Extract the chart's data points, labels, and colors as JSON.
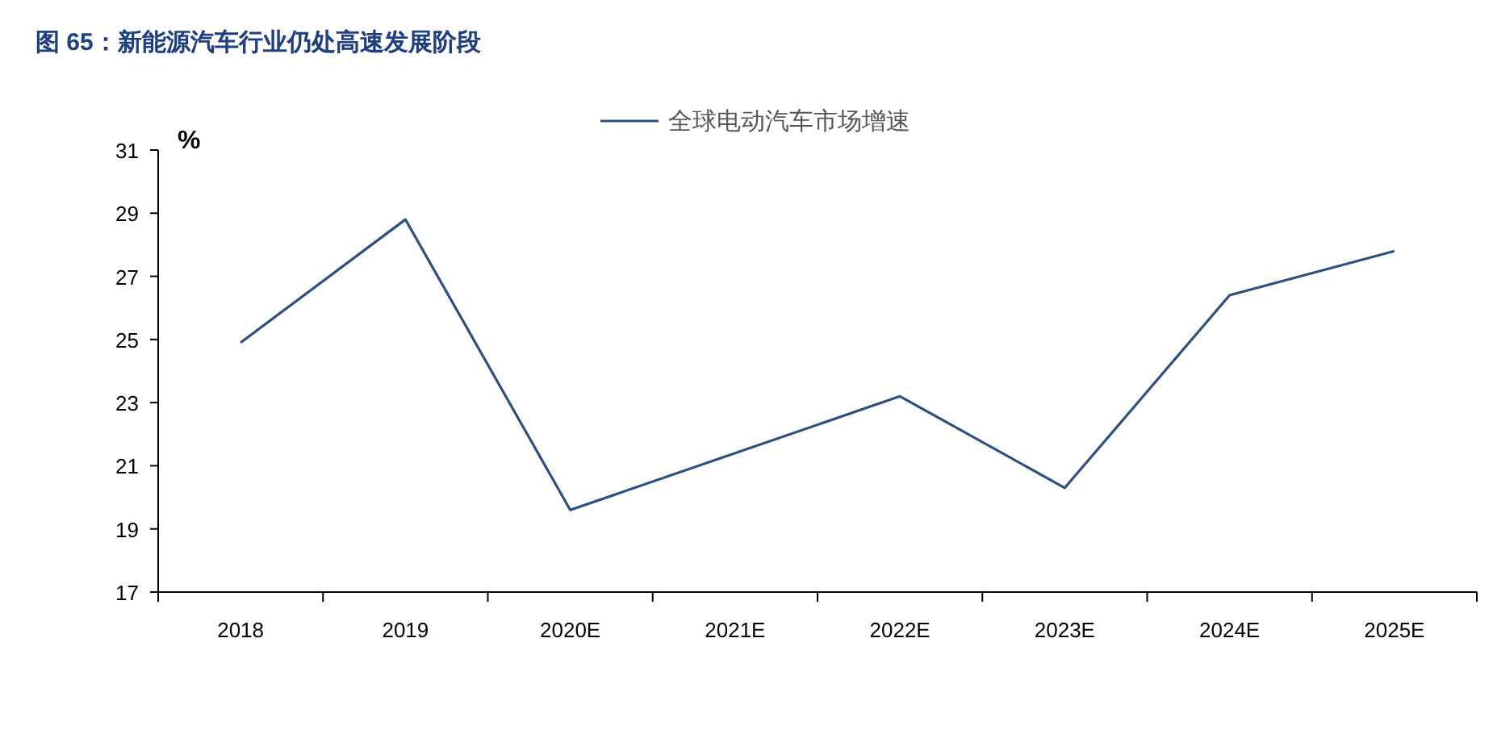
{
  "chart_data": {
    "type": "line",
    "title": "图 65：新能源汽车行业仍处高速发展阶段",
    "ylabel": "%",
    "categories": [
      "2018",
      "2019",
      "2020E",
      "2021E",
      "2022E",
      "2023E",
      "2024E",
      "2025E"
    ],
    "series": [
      {
        "name": "全球电动汽车市场增速",
        "color": "#2f4f7f",
        "values": [
          24.9,
          28.8,
          19.6,
          21.4,
          23.2,
          20.3,
          26.4,
          27.8
        ]
      }
    ],
    "ylim": [
      17,
      31
    ],
    "yticks": [
      17,
      19,
      21,
      23,
      25,
      27,
      29,
      31
    ],
    "grid": false,
    "legend": "top",
    "marker": "none",
    "line_style": "solid"
  }
}
